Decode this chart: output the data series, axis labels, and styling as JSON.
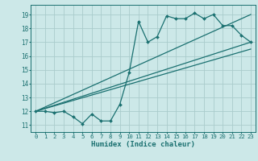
{
  "xlabel": "Humidex (Indice chaleur)",
  "bg_color": "#cce8e8",
  "grid_color": "#aacccc",
  "line_color": "#1a7070",
  "xlim": [
    -0.5,
    23.5
  ],
  "ylim": [
    10.5,
    19.7
  ],
  "yticks": [
    11,
    12,
    13,
    14,
    15,
    16,
    17,
    18,
    19
  ],
  "xticks": [
    0,
    1,
    2,
    3,
    4,
    5,
    6,
    7,
    8,
    9,
    10,
    11,
    12,
    13,
    14,
    15,
    16,
    17,
    18,
    19,
    20,
    21,
    22,
    23
  ],
  "data_x": [
    0,
    1,
    2,
    3,
    4,
    5,
    6,
    7,
    8,
    9,
    10,
    11,
    12,
    13,
    14,
    15,
    16,
    17,
    18,
    19,
    20,
    21,
    22,
    23
  ],
  "data_y": [
    12.0,
    12.0,
    11.9,
    12.0,
    11.6,
    11.1,
    11.8,
    11.3,
    11.3,
    12.5,
    14.8,
    18.5,
    17.0,
    17.4,
    18.9,
    18.7,
    18.7,
    19.1,
    18.7,
    19.0,
    18.2,
    18.2,
    17.5,
    17.0
  ],
  "line1_x": [
    0,
    23
  ],
  "line1_y": [
    12.0,
    19.0
  ],
  "line2_x": [
    0,
    23
  ],
  "line2_y": [
    12.0,
    17.0
  ],
  "line3_x": [
    0,
    23
  ],
  "line3_y": [
    12.0,
    16.5
  ]
}
